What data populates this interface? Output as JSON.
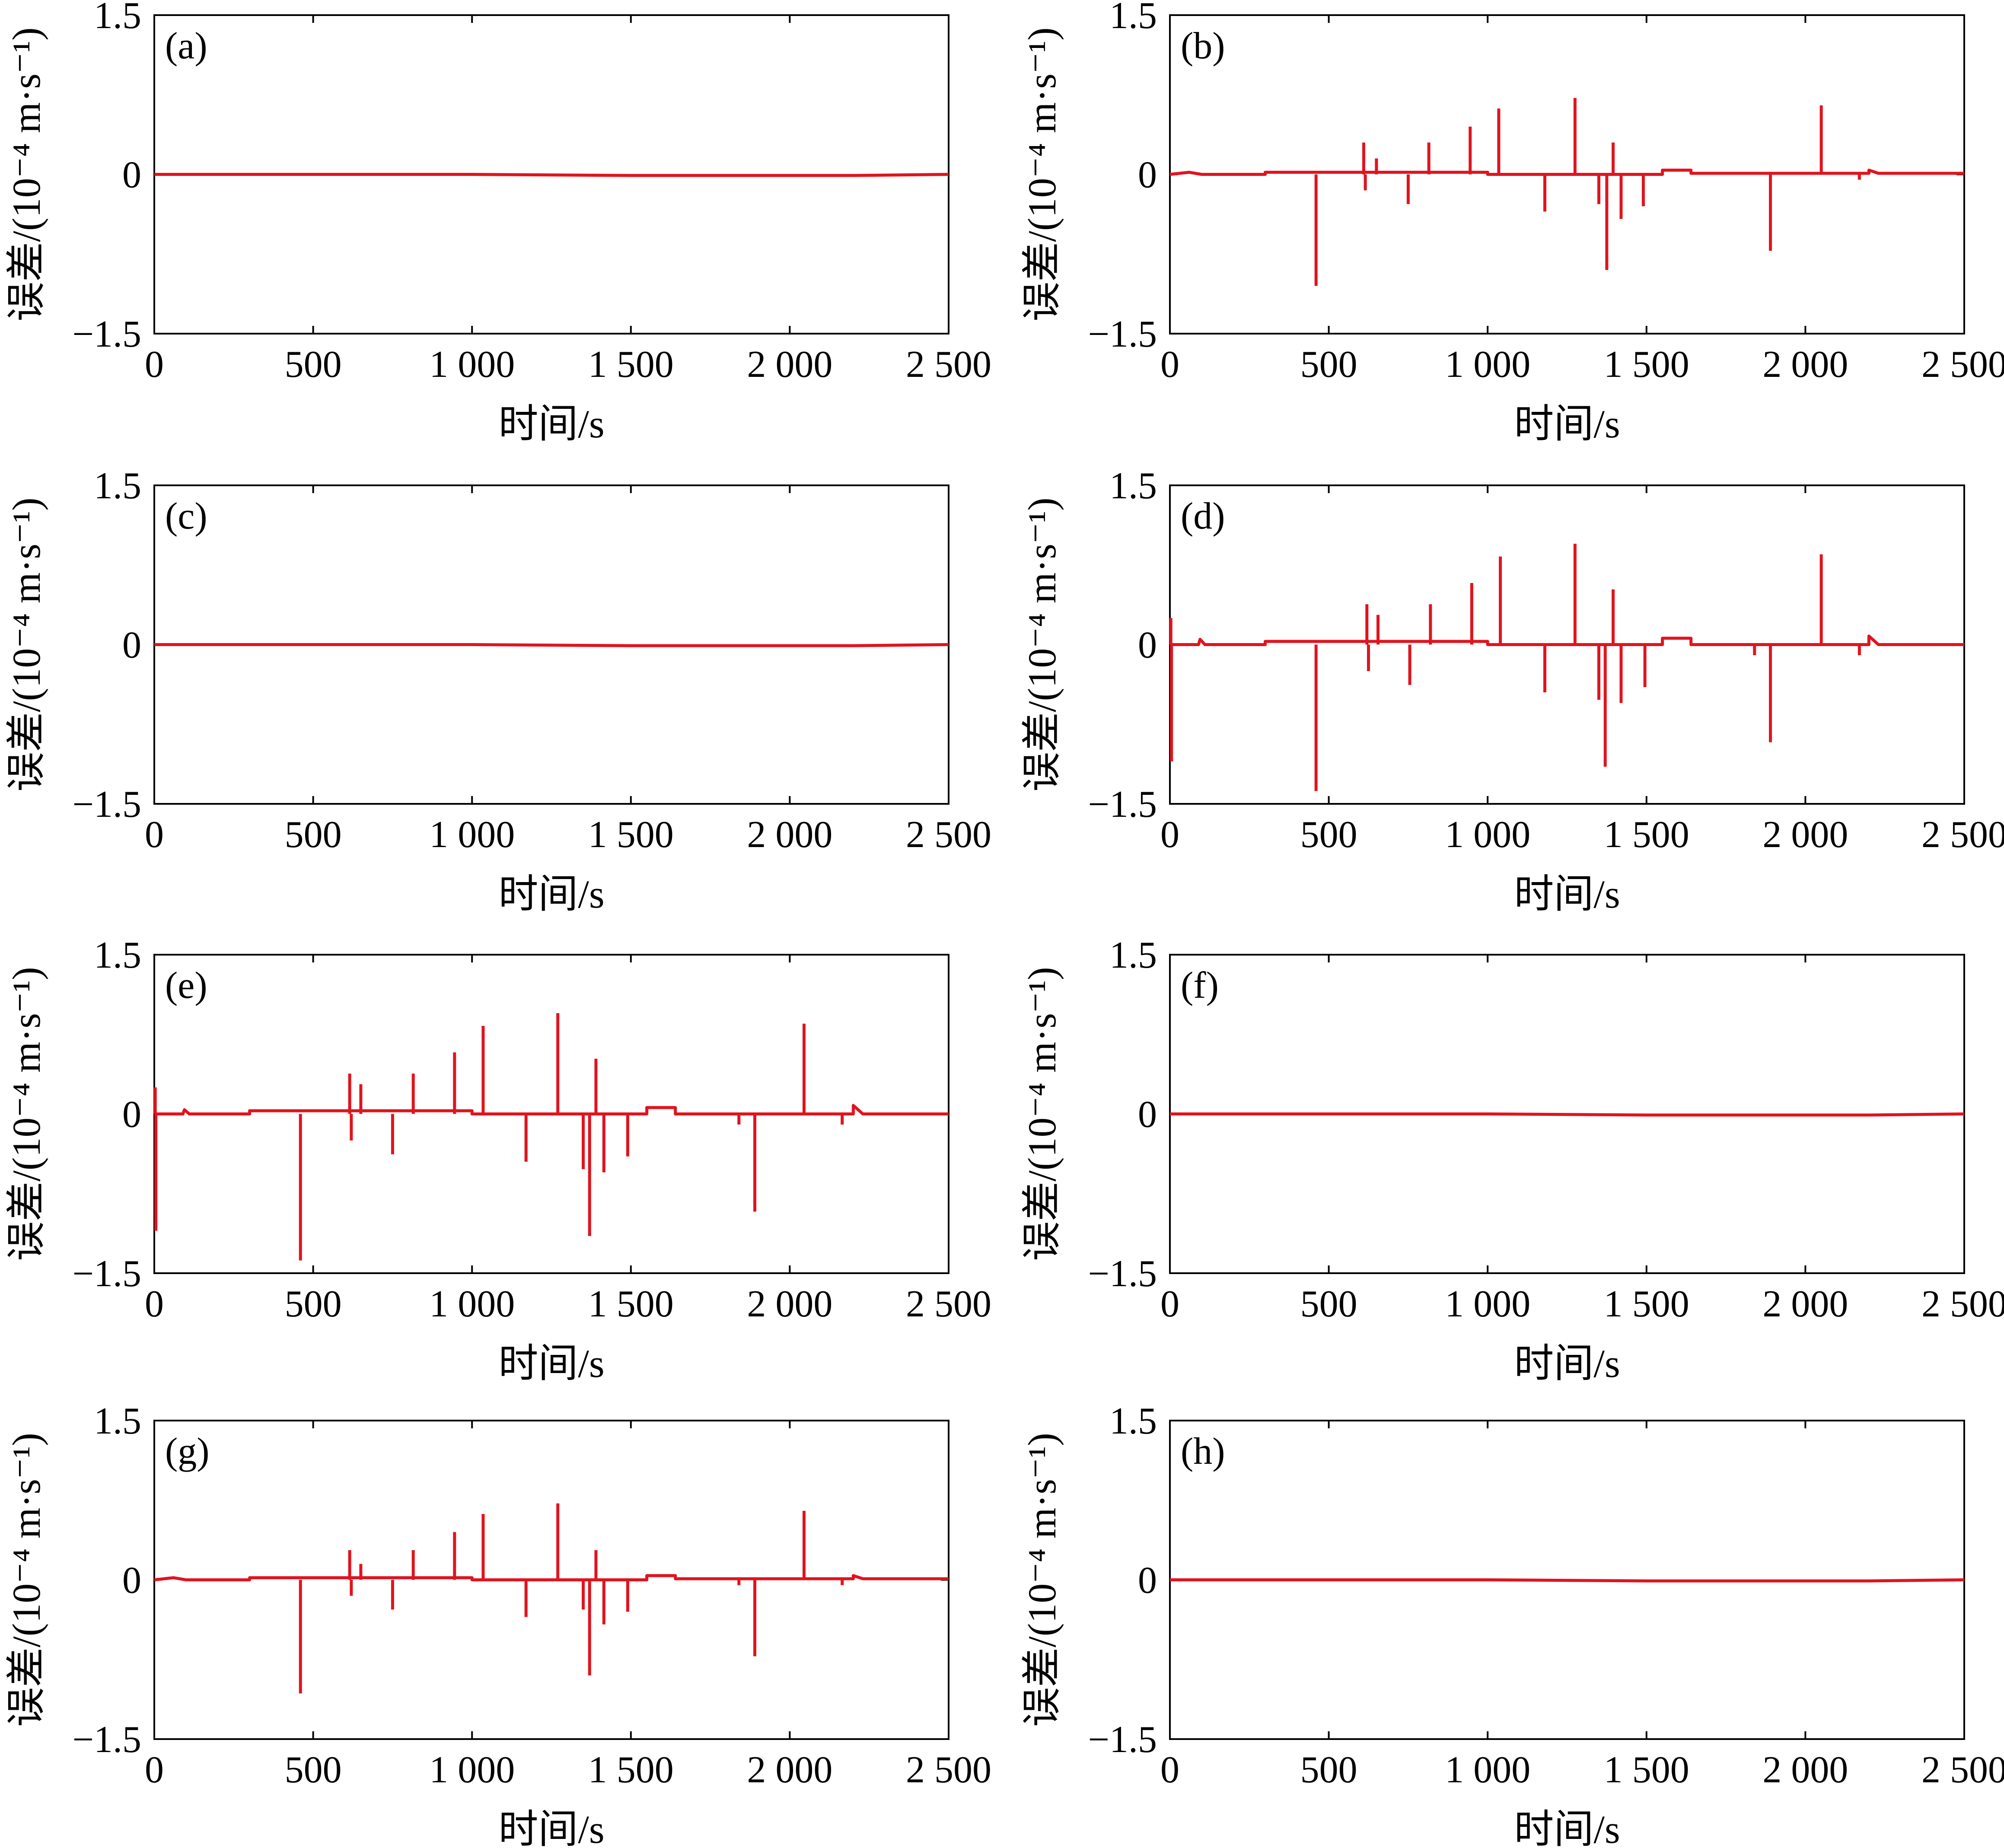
{
  "chart_data": [
    {
      "panel": "(a)",
      "type": "line",
      "xlabel": "时间/s",
      "ylabel": "误差/(10⁻⁴ m·s⁻¹)",
      "xlim": [
        0,
        2500
      ],
      "ylim": [
        -1.5,
        1.5
      ],
      "xticks": [
        "0",
        "500",
        "1 000",
        "1 500",
        "2 000",
        "2 500"
      ],
      "yticks": [
        "1.5",
        "0",
        "−1.5"
      ],
      "series": [
        {
          "color": "#e0141e",
          "baseline": [
            [
              0,
              0.0
            ],
            [
              300,
              0.0
            ],
            [
              1000,
              0.0
            ],
            [
              1500,
              -0.01
            ],
            [
              2200,
              -0.01
            ],
            [
              2500,
              0.0
            ]
          ],
          "spikes": []
        }
      ]
    },
    {
      "panel": "(b)",
      "type": "line",
      "xlabel": "时间/s",
      "ylabel": "误差/(10⁻⁴ m·s⁻¹)",
      "xlim": [
        0,
        2500
      ],
      "ylim": [
        -1.5,
        1.5
      ],
      "xticks": [
        "0",
        "500",
        "1 000",
        "1 500",
        "2 000",
        "2 500"
      ],
      "yticks": [
        "1.5",
        "0",
        "−1.5"
      ],
      "series": [
        {
          "color": "#e0141e",
          "baseline": [
            [
              0,
              0.0
            ],
            [
              60,
              0.02
            ],
            [
              100,
              0.0
            ],
            [
              300,
              0.0
            ],
            [
              300,
              0.02
            ],
            [
              1000,
              0.02
            ],
            [
              1000,
              0.0
            ],
            [
              1550,
              0.0
            ],
            [
              1550,
              0.04
            ],
            [
              1640,
              0.04
            ],
            [
              1640,
              0.01
            ],
            [
              2200,
              0.01
            ],
            [
              2200,
              0.04
            ],
            [
              2230,
              0.01
            ],
            [
              2500,
              0.01
            ]
          ],
          "spikes": [
            [
              460,
              -1.05
            ],
            [
              610,
              0.3
            ],
            [
              615,
              -0.15
            ],
            [
              650,
              0.15
            ],
            [
              750,
              -0.28
            ],
            [
              815,
              0.3
            ],
            [
              945,
              0.45
            ],
            [
              1035,
              0.62
            ],
            [
              1180,
              -0.35
            ],
            [
              1275,
              0.72
            ],
            [
              1350,
              -0.28
            ],
            [
              1375,
              -0.9
            ],
            [
              1395,
              0.3
            ],
            [
              1420,
              -0.42
            ],
            [
              1490,
              -0.3
            ],
            [
              1890,
              -0.72
            ],
            [
              2050,
              0.65
            ],
            [
              2170,
              -0.05
            ]
          ]
        }
      ]
    },
    {
      "panel": "(c)",
      "type": "line",
      "xlabel": "时间/s",
      "ylabel": "误差/(10⁻⁴ m·s⁻¹)",
      "xlim": [
        0,
        2500
      ],
      "ylim": [
        -1.5,
        1.5
      ],
      "xticks": [
        "0",
        "500",
        "1 000",
        "1 500",
        "2 000",
        "2 500"
      ],
      "yticks": [
        "1.5",
        "0",
        "−1.5"
      ],
      "series": [
        {
          "color": "#e0141e",
          "baseline": [
            [
              0,
              0.0
            ],
            [
              1000,
              0.0
            ],
            [
              1500,
              -0.01
            ],
            [
              2200,
              -0.01
            ],
            [
              2500,
              0.0
            ]
          ],
          "spikes": []
        }
      ]
    },
    {
      "panel": "(d)",
      "type": "line",
      "xlabel": "时间/s",
      "ylabel": "误差/(10⁻⁴ m·s⁻¹)",
      "xlim": [
        0,
        2500
      ],
      "ylim": [
        -1.5,
        1.5
      ],
      "xticks": [
        "0",
        "500",
        "1 000",
        "1 500",
        "2 000",
        "2 500"
      ],
      "yticks": [
        "1.5",
        "0",
        "−1.5"
      ],
      "series": [
        {
          "color": "#e0141e",
          "baseline": [
            [
              0,
              0.0
            ],
            [
              90,
              0.0
            ],
            [
              95,
              0.05
            ],
            [
              110,
              0.0
            ],
            [
              300,
              0.0
            ],
            [
              300,
              0.03
            ],
            [
              1000,
              0.03
            ],
            [
              1000,
              0.0
            ],
            [
              1550,
              0.0
            ],
            [
              1550,
              0.06
            ],
            [
              1640,
              0.06
            ],
            [
              1640,
              0.0
            ],
            [
              2200,
              0.0
            ],
            [
              2200,
              0.08
            ],
            [
              2230,
              0.0
            ],
            [
              2500,
              0.0
            ]
          ],
          "spikes": [
            [
              3,
              0.25
            ],
            [
              5,
              -1.1
            ],
            [
              460,
              -1.38
            ],
            [
              620,
              0.38
            ],
            [
              625,
              -0.25
            ],
            [
              655,
              0.28
            ],
            [
              755,
              -0.38
            ],
            [
              820,
              0.38
            ],
            [
              950,
              0.58
            ],
            [
              1040,
              0.83
            ],
            [
              1180,
              -0.45
            ],
            [
              1275,
              0.95
            ],
            [
              1350,
              -0.52
            ],
            [
              1370,
              -1.15
            ],
            [
              1395,
              0.52
            ],
            [
              1420,
              -0.55
            ],
            [
              1495,
              -0.4
            ],
            [
              1840,
              -0.1
            ],
            [
              1890,
              -0.92
            ],
            [
              2050,
              0.85
            ],
            [
              2170,
              -0.1
            ]
          ]
        }
      ]
    },
    {
      "panel": "(e)",
      "type": "line",
      "xlabel": "时间/s",
      "ylabel": "误差/(10⁻⁴ m·s⁻¹)",
      "xlim": [
        0,
        2500
      ],
      "ylim": [
        -1.5,
        1.5
      ],
      "xticks": [
        "0",
        "500",
        "1 000",
        "1 500",
        "2 000",
        "2 500"
      ],
      "yticks": [
        "1.5",
        "0",
        "−1.5"
      ],
      "series": [
        {
          "color": "#e0141e",
          "baseline": [
            [
              0,
              0.0
            ],
            [
              90,
              0.0
            ],
            [
              95,
              0.04
            ],
            [
              110,
              0.0
            ],
            [
              300,
              0.0
            ],
            [
              300,
              0.03
            ],
            [
              1000,
              0.03
            ],
            [
              1000,
              0.0
            ],
            [
              1550,
              0.0
            ],
            [
              1550,
              0.06
            ],
            [
              1640,
              0.06
            ],
            [
              1640,
              0.0
            ],
            [
              2200,
              0.0
            ],
            [
              2200,
              0.08
            ],
            [
              2230,
              0.0
            ],
            [
              2500,
              0.0
            ]
          ],
          "spikes": [
            [
              3,
              0.25
            ],
            [
              5,
              -1.1
            ],
            [
              460,
              -1.38
            ],
            [
              615,
              0.38
            ],
            [
              620,
              -0.25
            ],
            [
              650,
              0.28
            ],
            [
              750,
              -0.38
            ],
            [
              815,
              0.38
            ],
            [
              945,
              0.58
            ],
            [
              1035,
              0.83
            ],
            [
              1170,
              -0.45
            ],
            [
              1270,
              0.95
            ],
            [
              1350,
              -0.52
            ],
            [
              1370,
              -1.15
            ],
            [
              1390,
              0.52
            ],
            [
              1415,
              -0.55
            ],
            [
              1490,
              -0.4
            ],
            [
              1840,
              -0.1
            ],
            [
              1890,
              -0.92
            ],
            [
              2045,
              0.85
            ],
            [
              2165,
              -0.1
            ]
          ]
        }
      ]
    },
    {
      "panel": "(f)",
      "type": "line",
      "xlabel": "时间/s",
      "ylabel": "误差/(10⁻⁴ m·s⁻¹)",
      "xlim": [
        0,
        2500
      ],
      "ylim": [
        -1.5,
        1.5
      ],
      "xticks": [
        "0",
        "500",
        "1 000",
        "1 500",
        "2 000",
        "2 500"
      ],
      "yticks": [
        "1.5",
        "0",
        "−1.5"
      ],
      "series": [
        {
          "color": "#e0141e",
          "baseline": [
            [
              0,
              0.0
            ],
            [
              1000,
              0.0
            ],
            [
              1500,
              -0.01
            ],
            [
              2200,
              -0.01
            ],
            [
              2500,
              0.0
            ]
          ],
          "spikes": []
        }
      ]
    },
    {
      "panel": "(g)",
      "type": "line",
      "xlabel": "时间/s",
      "ylabel": "误差/(10⁻⁴ m·s⁻¹)",
      "xlim": [
        0,
        2500
      ],
      "ylim": [
        -1.5,
        1.5
      ],
      "xticks": [
        "0",
        "500",
        "1 000",
        "1 500",
        "2 000",
        "2 500"
      ],
      "yticks": [
        "1.5",
        "0",
        "−1.5"
      ],
      "series": [
        {
          "color": "#e0141e",
          "baseline": [
            [
              0,
              0.0
            ],
            [
              60,
              0.02
            ],
            [
              100,
              0.0
            ],
            [
              300,
              0.0
            ],
            [
              300,
              0.02
            ],
            [
              1000,
              0.02
            ],
            [
              1000,
              0.0
            ],
            [
              1550,
              0.0
            ],
            [
              1550,
              0.04
            ],
            [
              1640,
              0.04
            ],
            [
              1640,
              0.01
            ],
            [
              2200,
              0.01
            ],
            [
              2200,
              0.04
            ],
            [
              2230,
              0.01
            ],
            [
              2500,
              0.01
            ]
          ],
          "spikes": [
            [
              460,
              -1.07
            ],
            [
              615,
              0.28
            ],
            [
              620,
              -0.15
            ],
            [
              650,
              0.15
            ],
            [
              750,
              -0.28
            ],
            [
              815,
              0.28
            ],
            [
              945,
              0.45
            ],
            [
              1035,
              0.62
            ],
            [
              1170,
              -0.35
            ],
            [
              1270,
              0.72
            ],
            [
              1350,
              -0.28
            ],
            [
              1370,
              -0.9
            ],
            [
              1390,
              0.28
            ],
            [
              1415,
              -0.42
            ],
            [
              1490,
              -0.3
            ],
            [
              1840,
              -0.05
            ],
            [
              1890,
              -0.72
            ],
            [
              2045,
              0.65
            ],
            [
              2165,
              -0.05
            ]
          ]
        }
      ]
    },
    {
      "panel": "(h)",
      "type": "line",
      "xlabel": "时间/s",
      "ylabel": "误差/(10⁻⁴ m·s⁻¹)",
      "xlim": [
        0,
        2500
      ],
      "ylim": [
        -1.5,
        1.5
      ],
      "xticks": [
        "0",
        "500",
        "1 000",
        "1 500",
        "2 000",
        "2 500"
      ],
      "yticks": [
        "1.5",
        "0",
        "−1.5"
      ],
      "series": [
        {
          "color": "#e0141e",
          "baseline": [
            [
              0,
              0.0
            ],
            [
              1000,
              0.0
            ],
            [
              1500,
              -0.01
            ],
            [
              2200,
              -0.01
            ],
            [
              2500,
              0.0
            ]
          ],
          "spikes": []
        }
      ]
    }
  ]
}
